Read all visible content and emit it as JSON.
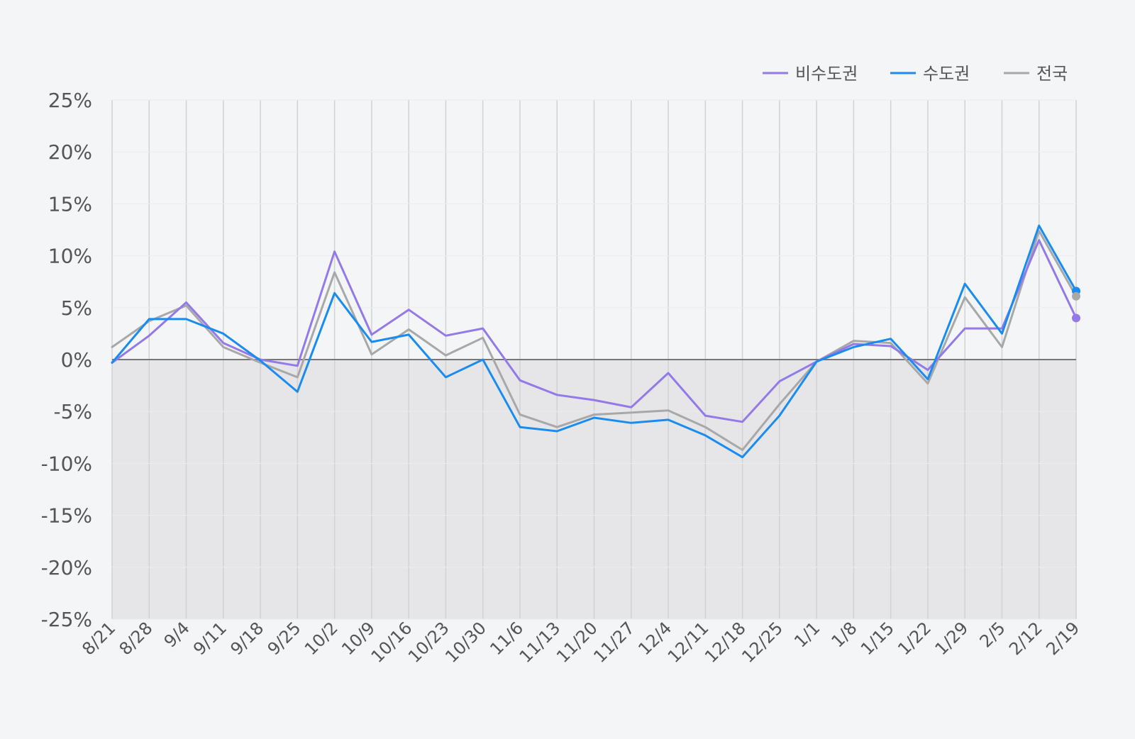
{
  "chart_data": {
    "type": "line",
    "categories": [
      "8/21",
      "8/28",
      "9/4",
      "9/11",
      "9/18",
      "9/25",
      "10/2",
      "10/9",
      "10/16",
      "10/23",
      "10/30",
      "11/6",
      "11/13",
      "11/20",
      "11/27",
      "12/4",
      "12/11",
      "12/18",
      "12/25",
      "1/1",
      "1/8",
      "1/15",
      "1/22",
      "1/29",
      "2/5",
      "2/12",
      "2/19"
    ],
    "ylim": [
      -25,
      25
    ],
    "yticks": [
      25,
      20,
      15,
      10,
      5,
      0,
      -5,
      -10,
      -15,
      -20,
      -25
    ],
    "ytick_labels": [
      "25%",
      "20%",
      "15%",
      "10%",
      "5%",
      "0%",
      "-5%",
      "-10%",
      "-15%",
      "-20%",
      "-25%"
    ],
    "grid": "vertical",
    "legend": "top-right",
    "negative_area_fill": "#e6e6e8",
    "series": [
      {
        "name": "비수도권",
        "color": "#9479e8",
        "values": [
          -0.3,
          2.3,
          5.5,
          1.6,
          0.0,
          -0.6,
          10.4,
          2.4,
          4.8,
          2.3,
          3.0,
          -2.0,
          -3.4,
          -3.9,
          -4.6,
          -1.3,
          -5.4,
          -6.0,
          -2.1,
          -0.2,
          1.5,
          1.3,
          -1.0,
          3.0,
          3.0,
          11.5,
          4.0
        ]
      },
      {
        "name": "수도권",
        "color": "#1a8cf0",
        "values": [
          -0.3,
          3.9,
          3.9,
          2.5,
          -0.1,
          -3.1,
          6.4,
          1.7,
          2.4,
          -1.7,
          0.0,
          -6.5,
          -6.9,
          -5.6,
          -6.1,
          -5.8,
          -7.3,
          -9.4,
          -5.4,
          -0.2,
          1.2,
          2.0,
          -1.9,
          7.3,
          2.5,
          12.9,
          6.6
        ]
      },
      {
        "name": "전국",
        "color": "#a8a8a8",
        "values": [
          1.2,
          3.7,
          5.2,
          1.2,
          -0.3,
          -1.7,
          8.4,
          0.5,
          2.9,
          0.4,
          2.1,
          -5.3,
          -6.5,
          -5.3,
          -5.1,
          -4.9,
          -6.5,
          -8.7,
          -4.3,
          -0.2,
          1.8,
          1.6,
          -2.3,
          6.0,
          1.2,
          12.4,
          6.1
        ]
      }
    ]
  }
}
